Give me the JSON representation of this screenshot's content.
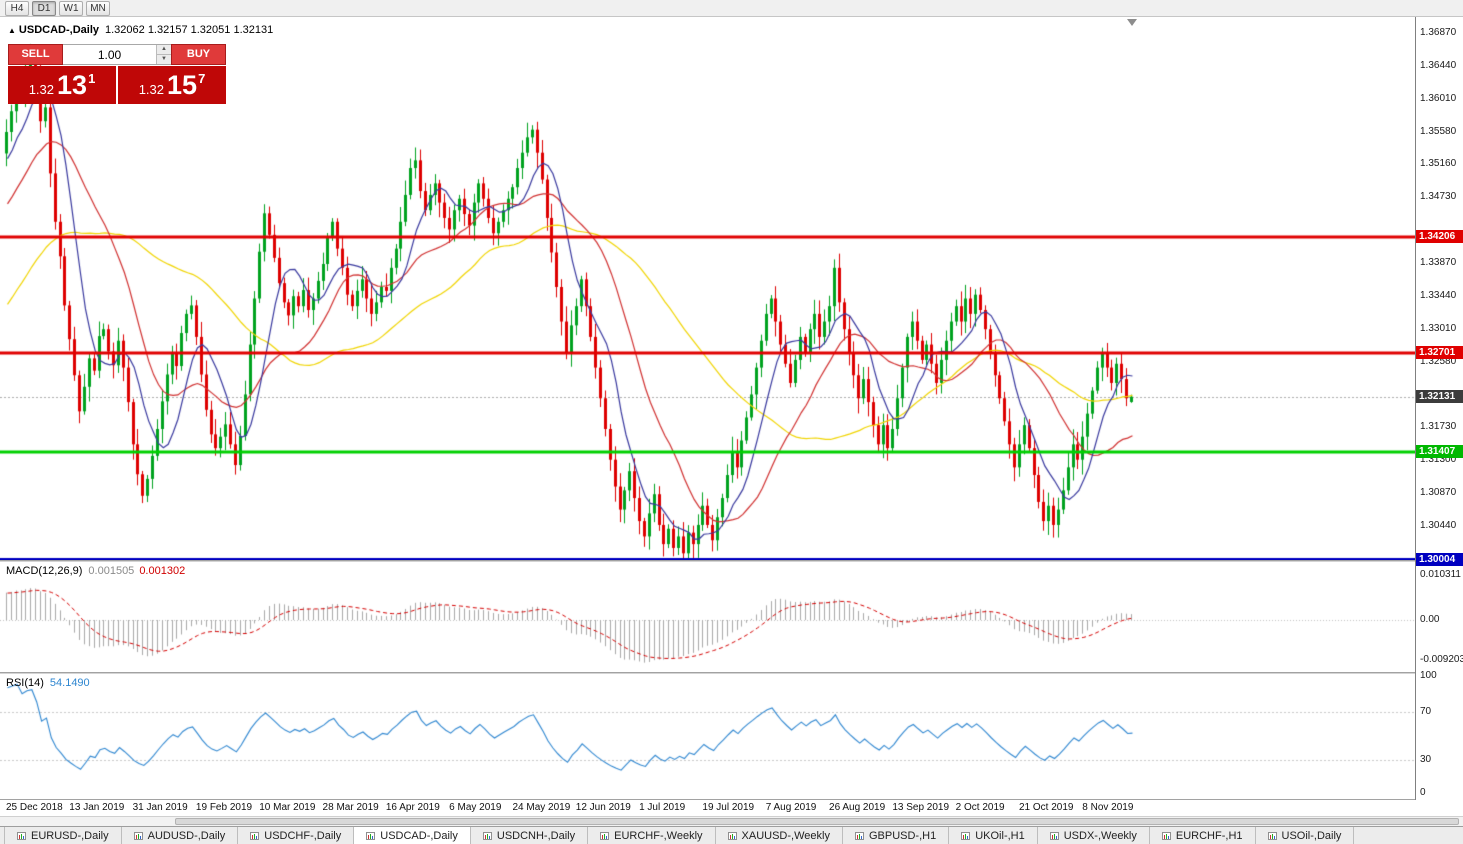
{
  "toolbar": {
    "timeframes": [
      {
        "label": "H4",
        "active": false
      },
      {
        "label": "D1",
        "active": true
      },
      {
        "label": "W1",
        "active": false
      },
      {
        "label": "MN",
        "active": false
      }
    ]
  },
  "icons": {
    "window": "▲",
    "spin_up": "▲",
    "spin_down": "▼"
  },
  "chart": {
    "title": "USDCAD-,Daily",
    "ohlc": "1.32062 1.32157 1.32051 1.32131"
  },
  "one_click": {
    "sell_label": "SELL",
    "buy_label": "BUY",
    "volume": "1.00",
    "sell_price": {
      "head": "1.32",
      "big": "13",
      "sup": "1"
    },
    "buy_price": {
      "head": "1.32",
      "big": "15",
      "sup": "7"
    }
  },
  "price_axis": {
    "ticks": [
      "1.36870",
      "1.36440",
      "1.36010",
      "1.35580",
      "1.35160",
      "1.34730",
      "1.33870",
      "1.33440",
      "1.33010",
      "1.32580",
      "1.31730",
      "1.31300",
      "1.30870",
      "1.30440"
    ],
    "badges": [
      {
        "label": "1.34206",
        "price": 1.34206,
        "bg": "#e00000",
        "fg": "#ffffff"
      },
      {
        "label": "1.32701",
        "price": 1.32701,
        "bg": "#e00000",
        "fg": "#ffffff"
      },
      {
        "label": "1.32131",
        "price": 1.32131,
        "bg": "#3c3c3c",
        "fg": "#ffffff"
      },
      {
        "label": "1.31407",
        "price": 1.31407,
        "bg": "#00b800",
        "fg": "#ffffff"
      },
      {
        "label": "1.30004",
        "price": 1.30004,
        "bg": "#0000c0",
        "fg": "#ffffff"
      }
    ]
  },
  "macd_panel": {
    "name": "MACD(12,26,9)",
    "value_main": "0.001505",
    "value_signal": "0.001302",
    "axis_top": "0.010311",
    "axis_mid": "0.00",
    "axis_bottom": "-0.009203"
  },
  "rsi_panel": {
    "name": "RSI(14)",
    "value": "54.1490",
    "levels": [
      "100",
      "70",
      "30",
      "0"
    ]
  },
  "date_axis": [
    "25 Dec 2018",
    "13 Jan 2019",
    "31 Jan 2019",
    "19 Feb 2019",
    "10 Mar 2019",
    "28 Mar 2019",
    "16 Apr 2019",
    "6 May 2019",
    "24 May 2019",
    "12 Jun 2019",
    "1 Jul 2019",
    "19 Jul 2019",
    "7 Aug 2019",
    "26 Aug 2019",
    "13 Sep 2019",
    "2 Oct 2019",
    "21 Oct 2019",
    "8 Nov 2019"
  ],
  "tabs": [
    {
      "label": "EURUSD-,Daily",
      "active": false
    },
    {
      "label": "AUDUSD-,Daily",
      "active": false
    },
    {
      "label": "USDCHF-,Daily",
      "active": false
    },
    {
      "label": "USDCAD-,Daily",
      "active": true
    },
    {
      "label": "USDCNH-,Daily",
      "active": false
    },
    {
      "label": "EURCHF-,Weekly",
      "active": false
    },
    {
      "label": "XAUUSD-,Weekly",
      "active": false
    },
    {
      "label": "GBPUSD-,H1",
      "active": false
    },
    {
      "label": "UKOil-,H1",
      "active": false
    },
    {
      "label": "USDX-,Weekly",
      "active": false
    },
    {
      "label": "EURCHF-,H1",
      "active": false
    },
    {
      "label": "USOil-,Daily",
      "active": false
    }
  ],
  "chart_data": {
    "type": "candlestick",
    "symbol": "USDCAD-",
    "period": "Daily",
    "last_candle": {
      "open": 1.32062,
      "high": 1.32157,
      "low": 1.32051,
      "close": 1.32131
    },
    "current_price": 1.32131,
    "price_axis_range": {
      "top": 1.37078,
      "bottom": 1.30003
    },
    "hlines": [
      {
        "price": 1.34206,
        "color": "#e00000",
        "width": 3
      },
      {
        "price": 1.32701,
        "color": "#e00000",
        "width": 3
      },
      {
        "price": 1.31407,
        "color": "#00d000",
        "width": 3
      },
      {
        "price": 1.30004,
        "color": "#0000c0",
        "width": 4
      }
    ],
    "moving_averages": [
      {
        "period": 8,
        "color": "#38389e"
      },
      {
        "period": 21,
        "color": "#d03030"
      },
      {
        "period": 50,
        "color": "#f0d400"
      }
    ],
    "macd": {
      "fast": 12,
      "slow": 26,
      "signal_period": 9,
      "main": 0.001505,
      "signal": 0.001302,
      "scale_top": 0.010311,
      "scale_bottom": -0.009203
    },
    "rsi": {
      "period": 14,
      "value": 54.149
    },
    "up_color": "#00a21f",
    "down_color": "#dd0000",
    "closes": [
      1.3558,
      1.3585,
      1.3618,
      1.3601,
      1.3639,
      1.3655,
      1.3628,
      1.3572,
      1.359,
      1.3504,
      1.3441,
      1.3396,
      1.3332,
      1.3288,
      1.3241,
      1.3194,
      1.3226,
      1.3263,
      1.3247,
      1.3292,
      1.3301,
      1.3272,
      1.3254,
      1.3286,
      1.3251,
      1.3206,
      1.3151,
      1.3112,
      1.3084,
      1.3106,
      1.3136,
      1.3171,
      1.3207,
      1.3242,
      1.3271,
      1.3253,
      1.3296,
      1.3321,
      1.3332,
      1.3291,
      1.3242,
      1.3196,
      1.3164,
      1.3146,
      1.3161,
      1.3177,
      1.3151,
      1.3124,
      1.3162,
      1.3216,
      1.3281,
      1.3341,
      1.3402,
      1.3452,
      1.3424,
      1.3394,
      1.3361,
      1.3336,
      1.3319,
      1.3344,
      1.3331,
      1.3352,
      1.3326,
      1.3341,
      1.3364,
      1.3386,
      1.3421,
      1.3441,
      1.3406,
      1.3381,
      1.3346,
      1.3331,
      1.3351,
      1.3366,
      1.3341,
      1.3321,
      1.3336,
      1.3356,
      1.3351,
      1.3381,
      1.3406,
      1.3441,
      1.3476,
      1.3511,
      1.3521,
      1.3481,
      1.3456,
      1.3476,
      1.3491,
      1.3466,
      1.3446,
      1.3431,
      1.3456,
      1.3471,
      1.3451,
      1.3436,
      1.3466,
      1.3491,
      1.3471,
      1.3446,
      1.3426,
      1.3441,
      1.3456,
      1.3471,
      1.3486,
      1.3511,
      1.3531,
      1.3551,
      1.3561,
      1.3531,
      1.3496,
      1.3446,
      1.3401,
      1.3356,
      1.3311,
      1.3271,
      1.3306,
      1.3331,
      1.3366,
      1.3331,
      1.3291,
      1.3251,
      1.3211,
      1.3171,
      1.3131,
      1.3096,
      1.3066,
      1.3091,
      1.3116,
      1.3081,
      1.3051,
      1.3031,
      1.3061,
      1.3086,
      1.3046,
      1.3021,
      1.3041,
      1.3016,
      1.3031,
      1.3009,
      1.3036,
      1.3021,
      1.3046,
      1.3071,
      1.3046,
      1.3026,
      1.3056,
      1.3081,
      1.3111,
      1.3141,
      1.3121,
      1.3156,
      1.3186,
      1.3216,
      1.3251,
      1.3286,
      1.3321,
      1.3341,
      1.3311,
      1.3281,
      1.3256,
      1.3231,
      1.3261,
      1.3291,
      1.3271,
      1.3301,
      1.3321,
      1.3291,
      1.3311,
      1.3331,
      1.3381,
      1.3336,
      1.3301,
      1.3271,
      1.3241,
      1.3211,
      1.3236,
      1.3206,
      1.3176,
      1.3151,
      1.3176,
      1.3146,
      1.3171,
      1.3211,
      1.3251,
      1.3291,
      1.3311,
      1.3286,
      1.3261,
      1.3281,
      1.3256,
      1.3231,
      1.3261,
      1.3286,
      1.3311,
      1.3331,
      1.3311,
      1.3341,
      1.3321,
      1.3346,
      1.3326,
      1.3301,
      1.3271,
      1.3241,
      1.3211,
      1.3181,
      1.3151,
      1.3121,
      1.3151,
      1.3176,
      1.3146,
      1.3111,
      1.3076,
      1.3051,
      1.3071,
      1.3046,
      1.3066,
      1.3091,
      1.3121,
      1.3151,
      1.3131,
      1.3161,
      1.3191,
      1.3221,
      1.3251,
      1.3271,
      1.3251,
      1.3231,
      1.3256,
      1.3236,
      1.3211,
      1.32131
    ]
  }
}
